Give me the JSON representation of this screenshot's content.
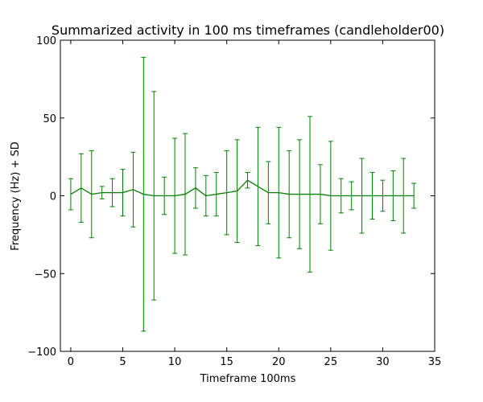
{
  "chart_data": {
    "type": "line",
    "title": "Summarized activity in 100 ms timeframes (candleholder00)",
    "xlabel": "Timeframe 100ms",
    "ylabel": "Frequency (Hz) + SD",
    "xlim": [
      -1,
      35
    ],
    "ylim": [
      -100,
      100
    ],
    "xticks": [
      0,
      5,
      10,
      15,
      20,
      25,
      30,
      35
    ],
    "yticks": [
      -100,
      -50,
      0,
      50,
      100
    ],
    "grid": false,
    "legend": false,
    "series": [
      {
        "color": "#008000",
        "x": [
          0,
          1,
          2,
          3,
          4,
          5,
          6,
          7,
          8,
          9,
          10,
          11,
          12,
          13,
          14,
          15,
          16,
          17,
          18,
          19,
          20,
          21,
          22,
          23,
          24,
          25,
          26,
          27,
          28,
          29,
          30,
          31,
          32,
          33
        ],
        "y": [
          1,
          5,
          1,
          2,
          2,
          2,
          4,
          1,
          0,
          0,
          0,
          1,
          5,
          0,
          1,
          2,
          3,
          10,
          6,
          2,
          2,
          1,
          1,
          1,
          1,
          0,
          0,
          0,
          0,
          0,
          0,
          0,
          0,
          0
        ],
        "yerr": [
          10,
          22,
          28,
          4,
          9,
          15,
          24,
          88,
          67,
          12,
          37,
          39,
          13,
          13,
          14,
          27,
          33,
          5,
          38,
          20,
          42,
          28,
          35,
          50,
          19,
          35,
          11,
          9,
          24,
          15,
          10,
          16,
          24,
          8
        ]
      }
    ]
  }
}
